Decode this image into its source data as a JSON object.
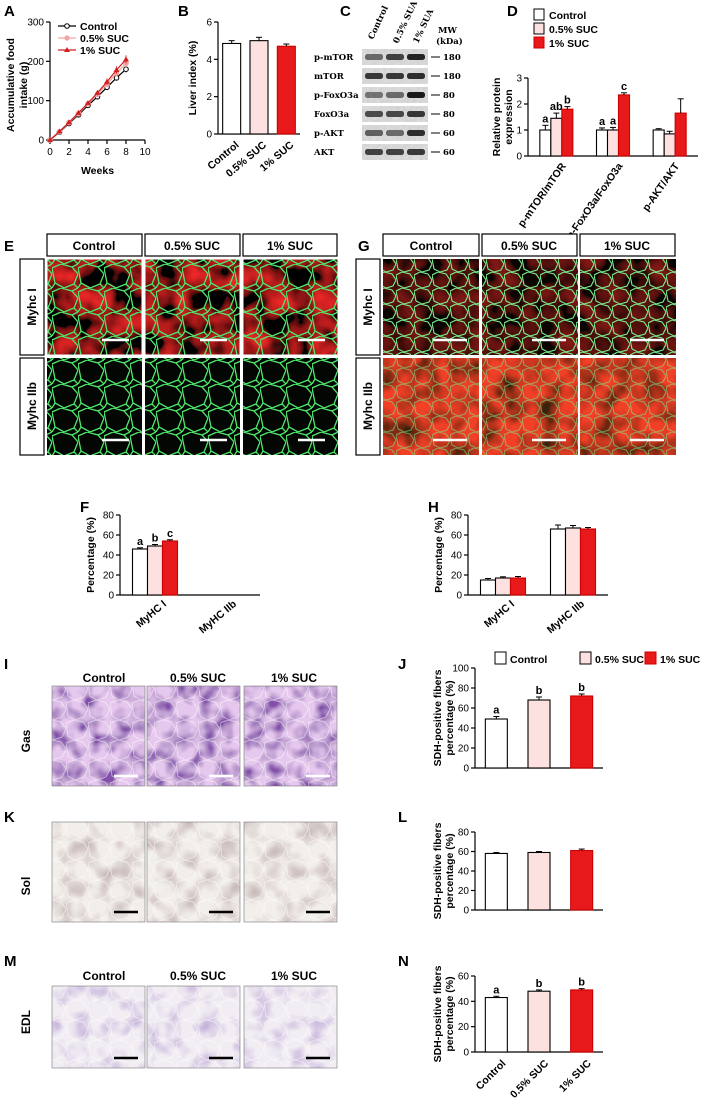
{
  "panels": {
    "A": {
      "label": "A"
    },
    "B": {
      "label": "B"
    },
    "C": {
      "label": "C"
    },
    "D": {
      "label": "D"
    },
    "E": {
      "label": "E"
    },
    "F": {
      "label": "F"
    },
    "G": {
      "label": "G"
    },
    "H": {
      "label": "H"
    },
    "I": {
      "label": "I"
    },
    "J": {
      "label": "J"
    },
    "K": {
      "label": "K"
    },
    "L": {
      "label": "L"
    },
    "M": {
      "label": "M"
    },
    "N": {
      "label": "N"
    }
  },
  "groups": [
    "Control",
    "0.5% SUC",
    "1% SUC"
  ],
  "group_colors": {
    "control": "#ffffff",
    "low": "#fde0e0",
    "high": "#e8191a"
  },
  "western_blot": {
    "lanes": [
      "Control",
      "0.5% SUA",
      "1% SUA"
    ],
    "mw_header": "MW\n(kDa)",
    "bands": [
      {
        "name": "p-mTOR",
        "mw": "180"
      },
      {
        "name": "mTOR",
        "mw": "180"
      },
      {
        "name": "p-FoxO3a",
        "mw": "80"
      },
      {
        "name": "FoxO3a",
        "mw": "80"
      },
      {
        "name": "p-AKT",
        "mw": "60"
      },
      {
        "name": "AKT",
        "mw": "60"
      }
    ]
  },
  "micrographs": {
    "E": {
      "row_labels": [
        "Myhc I",
        "Myhc IIb"
      ]
    },
    "G": {
      "row_labels": [
        "Myhc I",
        "Myhc IIb"
      ]
    },
    "I": {
      "row_label": "Gas"
    },
    "K": {
      "row_label": "Sol"
    },
    "M": {
      "row_label": "EDL"
    }
  },
  "chart_data": [
    {
      "id": "A",
      "type": "line",
      "xlabel": "Weeks",
      "ylabel": "Accumulative food intake (g)",
      "xlim": [
        0,
        10
      ],
      "xticks": [
        0,
        2,
        4,
        6,
        8,
        10
      ],
      "ylim": [
        0,
        300
      ],
      "yticks": [
        0,
        100,
        200,
        300
      ],
      "legend": "top-left",
      "x": [
        0,
        1,
        2,
        3,
        4,
        5,
        6,
        7,
        8
      ],
      "series": [
        {
          "name": "Control",
          "values": [
            0,
            20,
            42,
            64,
            88,
            110,
            134,
            158,
            180
          ],
          "err": [
            0,
            2,
            3,
            3,
            4,
            5,
            6,
            7,
            8
          ]
        },
        {
          "name": "0.5% SUC",
          "values": [
            0,
            21,
            44,
            67,
            92,
            116,
            142,
            170,
            195
          ],
          "err": [
            0,
            2,
            3,
            4,
            5,
            6,
            7,
            8,
            9
          ]
        },
        {
          "name": "1% SUC",
          "values": [
            0,
            22,
            45,
            69,
            94,
            120,
            148,
            178,
            205
          ],
          "err": [
            0,
            2,
            3,
            4,
            5,
            6,
            8,
            9,
            10
          ]
        }
      ]
    },
    {
      "id": "B",
      "type": "bar",
      "ylabel": "Liver index (%)",
      "ylim": [
        0,
        6
      ],
      "yticks": [
        0,
        2,
        4,
        6
      ],
      "categories": [
        "Control",
        "0.5% SUC",
        "1% SUC"
      ],
      "values": [
        4.85,
        5.0,
        4.7
      ],
      "err": [
        0.15,
        0.18,
        0.12
      ]
    },
    {
      "id": "D",
      "type": "bar",
      "ylabel": "Relative protein expression",
      "ylim": [
        0,
        3
      ],
      "yticks": [
        0,
        1,
        2,
        3
      ],
      "legend": "top",
      "categories": [
        "p-mTOR/mTOR",
        "p-FoxO3a/FoxO3a",
        "p-AKT/AKT"
      ],
      "series": [
        {
          "name": "Control",
          "values": [
            1.0,
            1.0,
            1.0
          ],
          "err": [
            0.18,
            0.08,
            0.05
          ]
        },
        {
          "name": "0.5% SUC",
          "values": [
            1.45,
            1.0,
            0.85
          ],
          "err": [
            0.2,
            0.1,
            0.1
          ]
        },
        {
          "name": "1% SUC",
          "values": [
            1.8,
            2.35,
            1.65
          ],
          "err": [
            0.1,
            0.08,
            0.55
          ]
        }
      ],
      "sig_labels": [
        [
          "a",
          "ab",
          "b"
        ],
        [
          "a",
          "a",
          "c"
        ],
        [
          "",
          "",
          ""
        ]
      ]
    },
    {
      "id": "F",
      "type": "bar",
      "ylabel": "Percentage (%)",
      "ylim": [
        0,
        80
      ],
      "yticks": [
        0,
        20,
        40,
        60,
        80
      ],
      "categories": [
        "MyHC I",
        "MyHC IIb"
      ],
      "series": [
        {
          "name": "Control",
          "values": [
            46,
            0
          ],
          "err": [
            1.2,
            0
          ]
        },
        {
          "name": "0.5% SUC",
          "values": [
            49,
            0
          ],
          "err": [
            1.5,
            0
          ]
        },
        {
          "name": "1% SUC",
          "values": [
            54,
            0
          ],
          "err": [
            1.2,
            0
          ]
        }
      ],
      "sig_labels": [
        [
          "a",
          "b",
          "c"
        ],
        [
          "",
          "",
          ""
        ]
      ]
    },
    {
      "id": "H",
      "type": "bar",
      "ylabel": "Percentage (%)",
      "ylim": [
        0,
        80
      ],
      "yticks": [
        0,
        20,
        40,
        60,
        80
      ],
      "categories": [
        "MyHC I",
        "MyHC IIb"
      ],
      "series": [
        {
          "name": "Control",
          "values": [
            15,
            66
          ],
          "err": [
            1.5,
            4
          ]
        },
        {
          "name": "0.5% SUC",
          "values": [
            17,
            67
          ],
          "err": [
            1.2,
            2.5
          ]
        },
        {
          "name": "1% SUC",
          "values": [
            17,
            66
          ],
          "err": [
            1.5,
            1.5
          ]
        }
      ]
    },
    {
      "id": "J",
      "type": "bar",
      "ylabel": "SDH-positive fibers percentage (%)",
      "ylim": [
        0,
        100
      ],
      "yticks": [
        0,
        20,
        40,
        60,
        80,
        100
      ],
      "legend": "top",
      "categories": [
        "Control",
        "0.5% SUC",
        "1% SUC"
      ],
      "values": [
        49,
        68,
        72
      ],
      "err": [
        2.5,
        3,
        2
      ],
      "sig_labels": [
        "a",
        "b",
        "b"
      ]
    },
    {
      "id": "L",
      "type": "bar",
      "ylabel": "SDH-positive fibers percentage (%)",
      "ylim": [
        0,
        80
      ],
      "yticks": [
        0,
        20,
        40,
        60,
        80
      ],
      "categories": [
        "Control",
        "0.5% SUC",
        "1% SUC"
      ],
      "values": [
        58,
        59,
        61
      ],
      "err": [
        1,
        1,
        1.5
      ]
    },
    {
      "id": "N",
      "type": "bar",
      "ylabel": "SDH-positive fibers percentage (%)",
      "ylim": [
        0,
        60
      ],
      "yticks": [
        0,
        20,
        40,
        60
      ],
      "categories": [
        "Control",
        "0.5% SUC",
        "1% SUC"
      ],
      "values": [
        43,
        48,
        49
      ],
      "err": [
        1,
        1,
        1
      ],
      "sig_labels": [
        "a",
        "b",
        "b"
      ]
    }
  ]
}
